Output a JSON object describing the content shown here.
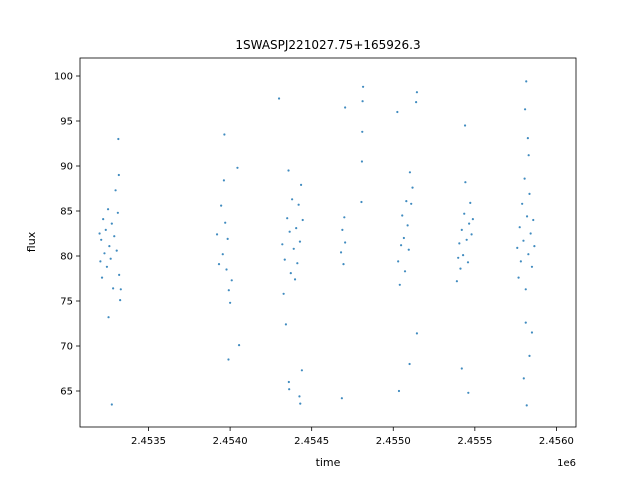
{
  "chart_data": {
    "type": "scatter",
    "title": "1SWASPJ221027.75+165926.3",
    "xlabel": "time",
    "ylabel": "flux",
    "x_offset_label": "1e6",
    "xlim": [
      2453080,
      2456120
    ],
    "ylim": [
      61,
      102
    ],
    "xticks": [
      {
        "value": 2453500,
        "label": "2.4535"
      },
      {
        "value": 2454000,
        "label": "2.4540"
      },
      {
        "value": 2454500,
        "label": "2.4545"
      },
      {
        "value": 2455000,
        "label": "2.4550"
      },
      {
        "value": 2455500,
        "label": "2.4555"
      },
      {
        "value": 2456000,
        "label": "2.4560"
      }
    ],
    "yticks": [
      {
        "value": 65,
        "label": "65"
      },
      {
        "value": 70,
        "label": "70"
      },
      {
        "value": 75,
        "label": "75"
      },
      {
        "value": 80,
        "label": "80"
      },
      {
        "value": 85,
        "label": "85"
      },
      {
        "value": 90,
        "label": "90"
      },
      {
        "value": 95,
        "label": "95"
      },
      {
        "value": 100,
        "label": "100"
      }
    ],
    "marker_color": "#1f77b4",
    "grid": false,
    "series": [
      {
        "values": [
          {
            "x": 2453200,
            "y": 82.5
          },
          {
            "x": 2453205,
            "y": 79.4
          },
          {
            "x": 2453210,
            "y": 81.8
          },
          {
            "x": 2453215,
            "y": 77.6
          },
          {
            "x": 2453222,
            "y": 84.1
          },
          {
            "x": 2453230,
            "y": 80.3
          },
          {
            "x": 2453238,
            "y": 82.9
          },
          {
            "x": 2453245,
            "y": 78.8
          },
          {
            "x": 2453252,
            "y": 85.2
          },
          {
            "x": 2453260,
            "y": 81.1
          },
          {
            "x": 2453268,
            "y": 79.7
          },
          {
            "x": 2453275,
            "y": 83.6
          },
          {
            "x": 2453283,
            "y": 76.4
          },
          {
            "x": 2453290,
            "y": 82.2
          },
          {
            "x": 2453298,
            "y": 87.3
          },
          {
            "x": 2453305,
            "y": 80.6
          },
          {
            "x": 2453312,
            "y": 84.8
          },
          {
            "x": 2453320,
            "y": 77.9
          },
          {
            "x": 2453326,
            "y": 75.1
          },
          {
            "x": 2453330,
            "y": 76.3
          },
          {
            "x": 2453318,
            "y": 89.0
          },
          {
            "x": 2453255,
            "y": 73.2
          },
          {
            "x": 2453275,
            "y": 63.5
          },
          {
            "x": 2453315,
            "y": 93.0
          },
          {
            "x": 2453920,
            "y": 82.4
          },
          {
            "x": 2453932,
            "y": 79.1
          },
          {
            "x": 2453945,
            "y": 85.6
          },
          {
            "x": 2453955,
            "y": 80.2
          },
          {
            "x": 2453962,
            "y": 88.4
          },
          {
            "x": 2453970,
            "y": 83.7
          },
          {
            "x": 2453978,
            "y": 78.5
          },
          {
            "x": 2453985,
            "y": 81.9
          },
          {
            "x": 2453992,
            "y": 76.2
          },
          {
            "x": 2454000,
            "y": 74.8
          },
          {
            "x": 2454010,
            "y": 77.3
          },
          {
            "x": 2453965,
            "y": 93.5
          },
          {
            "x": 2454045,
            "y": 89.8
          },
          {
            "x": 2453990,
            "y": 68.5
          },
          {
            "x": 2454055,
            "y": 70.1
          },
          {
            "x": 2454320,
            "y": 81.3
          },
          {
            "x": 2454328,
            "y": 75.8
          },
          {
            "x": 2454335,
            "y": 79.6
          },
          {
            "x": 2454342,
            "y": 72.4
          },
          {
            "x": 2454350,
            "y": 84.2
          },
          {
            "x": 2454358,
            "y": 89.5
          },
          {
            "x": 2454365,
            "y": 82.7
          },
          {
            "x": 2454372,
            "y": 78.1
          },
          {
            "x": 2454380,
            "y": 86.3
          },
          {
            "x": 2454390,
            "y": 80.8
          },
          {
            "x": 2454398,
            "y": 77.4
          },
          {
            "x": 2454405,
            "y": 83.1
          },
          {
            "x": 2454412,
            "y": 79.2
          },
          {
            "x": 2454420,
            "y": 85.7
          },
          {
            "x": 2454428,
            "y": 81.6
          },
          {
            "x": 2454435,
            "y": 87.9
          },
          {
            "x": 2454445,
            "y": 84.0
          },
          {
            "x": 2454360,
            "y": 66.0
          },
          {
            "x": 2454362,
            "y": 65.2
          },
          {
            "x": 2454425,
            "y": 64.4
          },
          {
            "x": 2454430,
            "y": 63.6
          },
          {
            "x": 2454440,
            "y": 67.3
          },
          {
            "x": 2454300,
            "y": 97.5
          },
          {
            "x": 2454680,
            "y": 80.4
          },
          {
            "x": 2454688,
            "y": 82.9
          },
          {
            "x": 2454695,
            "y": 79.1
          },
          {
            "x": 2454700,
            "y": 84.3
          },
          {
            "x": 2454705,
            "y": 81.5
          },
          {
            "x": 2454685,
            "y": 64.2
          },
          {
            "x": 2454705,
            "y": 96.5
          },
          {
            "x": 2454808,
            "y": 90.5
          },
          {
            "x": 2454810,
            "y": 93.8
          },
          {
            "x": 2454812,
            "y": 97.2
          },
          {
            "x": 2454815,
            "y": 98.8
          },
          {
            "x": 2454805,
            "y": 86.0
          },
          {
            "x": 2455030,
            "y": 79.4
          },
          {
            "x": 2455040,
            "y": 76.8
          },
          {
            "x": 2455048,
            "y": 81.2
          },
          {
            "x": 2455055,
            "y": 84.5
          },
          {
            "x": 2455065,
            "y": 82.0
          },
          {
            "x": 2455072,
            "y": 78.3
          },
          {
            "x": 2455080,
            "y": 86.1
          },
          {
            "x": 2455088,
            "y": 83.4
          },
          {
            "x": 2455095,
            "y": 80.7
          },
          {
            "x": 2455102,
            "y": 89.3
          },
          {
            "x": 2455110,
            "y": 85.8
          },
          {
            "x": 2455118,
            "y": 87.6
          },
          {
            "x": 2455140,
            "y": 97.1
          },
          {
            "x": 2455145,
            "y": 98.2
          },
          {
            "x": 2455145,
            "y": 71.4
          },
          {
            "x": 2455025,
            "y": 96.0
          },
          {
            "x": 2455035,
            "y": 65.0
          },
          {
            "x": 2455100,
            "y": 68.0
          },
          {
            "x": 2455390,
            "y": 77.2
          },
          {
            "x": 2455398,
            "y": 79.8
          },
          {
            "x": 2455405,
            "y": 81.4
          },
          {
            "x": 2455412,
            "y": 78.6
          },
          {
            "x": 2455420,
            "y": 82.9
          },
          {
            "x": 2455428,
            "y": 80.1
          },
          {
            "x": 2455435,
            "y": 84.7
          },
          {
            "x": 2455442,
            "y": 88.2
          },
          {
            "x": 2455450,
            "y": 81.8
          },
          {
            "x": 2455458,
            "y": 79.3
          },
          {
            "x": 2455465,
            "y": 83.6
          },
          {
            "x": 2455472,
            "y": 85.9
          },
          {
            "x": 2455480,
            "y": 82.4
          },
          {
            "x": 2455488,
            "y": 84.1
          },
          {
            "x": 2455420,
            "y": 67.5
          },
          {
            "x": 2455440,
            "y": 94.5
          },
          {
            "x": 2455460,
            "y": 64.8
          },
          {
            "x": 2455760,
            "y": 80.9
          },
          {
            "x": 2455768,
            "y": 77.6
          },
          {
            "x": 2455775,
            "y": 83.2
          },
          {
            "x": 2455782,
            "y": 79.4
          },
          {
            "x": 2455790,
            "y": 85.8
          },
          {
            "x": 2455798,
            "y": 81.7
          },
          {
            "x": 2455805,
            "y": 88.6
          },
          {
            "x": 2455812,
            "y": 76.3
          },
          {
            "x": 2455820,
            "y": 84.4
          },
          {
            "x": 2455828,
            "y": 80.2
          },
          {
            "x": 2455835,
            "y": 86.9
          },
          {
            "x": 2455842,
            "y": 82.5
          },
          {
            "x": 2455850,
            "y": 78.8
          },
          {
            "x": 2455858,
            "y": 84.0
          },
          {
            "x": 2455865,
            "y": 81.1
          },
          {
            "x": 2455808,
            "y": 96.3
          },
          {
            "x": 2455815,
            "y": 99.4
          },
          {
            "x": 2455825,
            "y": 93.1
          },
          {
            "x": 2455800,
            "y": 66.4
          },
          {
            "x": 2455818,
            "y": 63.4
          },
          {
            "x": 2455835,
            "y": 68.9
          },
          {
            "x": 2455850,
            "y": 71.5
          },
          {
            "x": 2455830,
            "y": 91.2
          },
          {
            "x": 2455812,
            "y": 72.6
          }
        ]
      }
    ]
  }
}
